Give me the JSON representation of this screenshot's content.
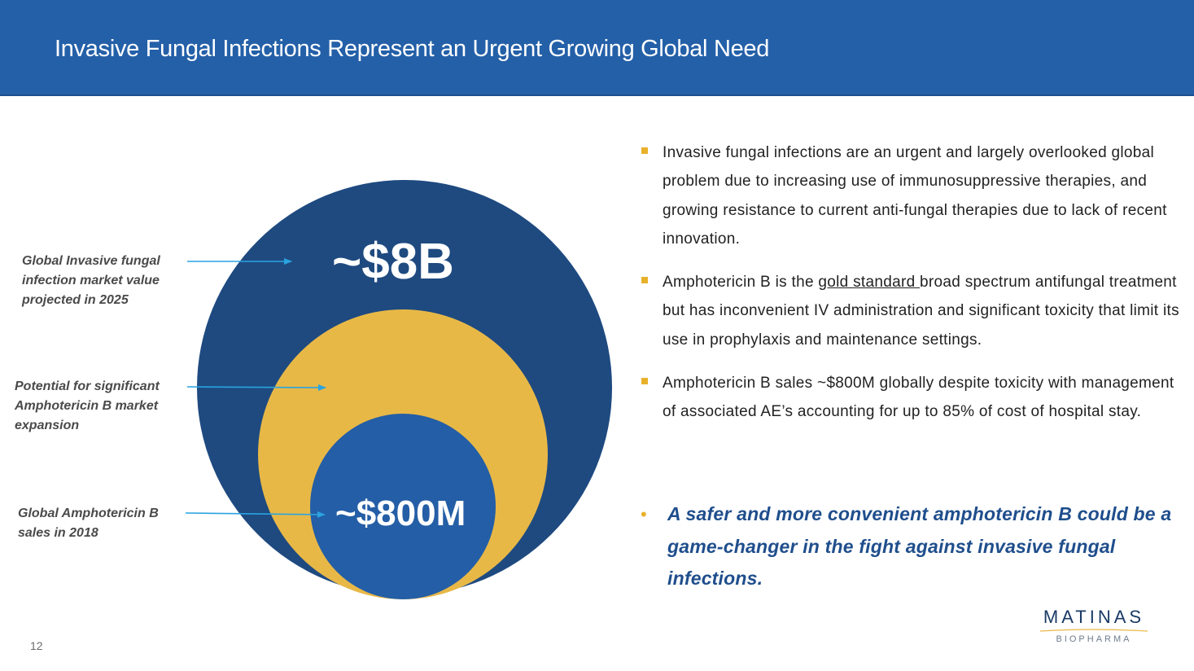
{
  "header": {
    "title": "Invasive Fungal Infections Represent an Urgent Growing Global Need"
  },
  "diagram": {
    "outer_value": "~$8B",
    "inner_value": "~$800M",
    "callouts": [
      "Global Invasive fungal infection market value projected in 2025",
      "Potential for significant Amphotericin B market expansion",
      "Global Amphotericin B sales in 2018"
    ],
    "colors": {
      "outer": "#1e4a80",
      "middle": "#e8b847",
      "inner": "#245ea6",
      "arrow": "#2aa3e0"
    }
  },
  "bullets": [
    {
      "text": "Invasive fungal infections are an urgent and largely overlooked global problem due to increasing use of immunosuppressive therapies, and growing resistance to current anti-fungal therapies due to lack of recent innovation."
    },
    {
      "text_before": "Amphotericin B is the ",
      "text_underlined": "gold standard ",
      "text_after": "broad spectrum antifungal treatment but has inconvenient IV administration and significant toxicity that limit its use in prophylaxis and maintenance settings."
    },
    {
      "text": "Amphotericin B sales ~$800M globally despite toxicity with management of associated AE’s accounting for up to 85% of cost of hospital stay."
    }
  ],
  "conclusion": {
    "text": "A safer and more convenient amphotericin B could be a game-changer in the fight against invasive fungal infections."
  },
  "footer": {
    "page_number": "12",
    "logo_name": "MATINAS",
    "logo_sub": "BIOPHARMA"
  },
  "colors": {
    "header_bg": "#2460a8",
    "bullet_marker": "#e8b12a",
    "conclusion_text": "#1f4e8c"
  }
}
